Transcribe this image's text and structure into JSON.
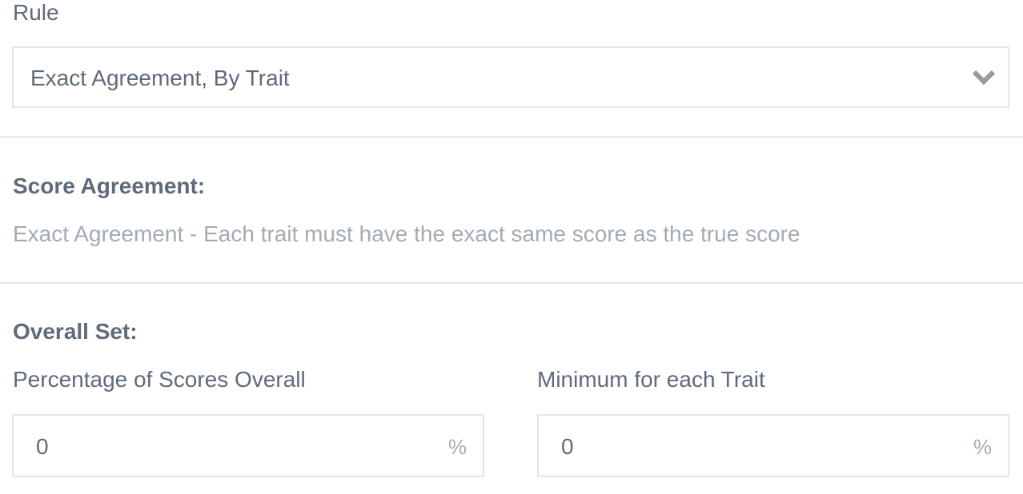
{
  "rule": {
    "label": "Rule",
    "selected": "Exact Agreement, By Trait"
  },
  "score_agreement": {
    "heading": "Score Agreement:",
    "description": "Exact Agreement - Each trait must have the exact same score as the true score"
  },
  "overall_set": {
    "heading": "Overall Set:",
    "percentage_overall": {
      "label": "Percentage of Scores Overall",
      "value": "0",
      "unit": "%"
    },
    "minimum_trait": {
      "label": "Minimum for each Trait",
      "value": "0",
      "unit": "%"
    }
  }
}
